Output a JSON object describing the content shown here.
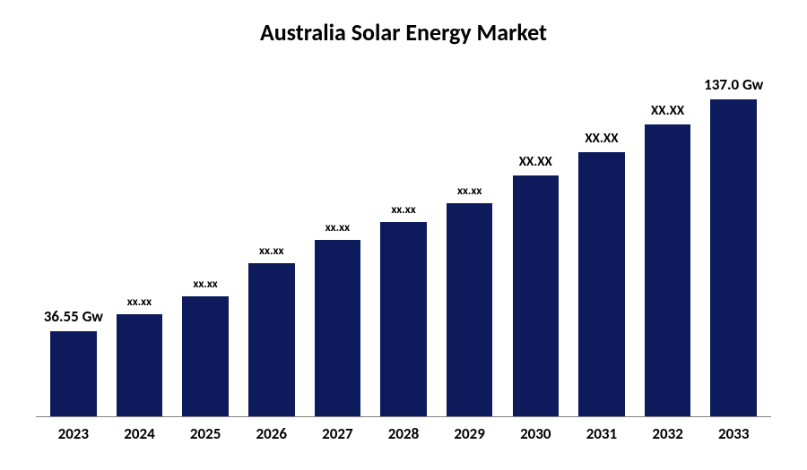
{
  "chart": {
    "type": "bar",
    "title": "Australia Solar Energy Market",
    "title_fontsize": 26,
    "title_color": "#000000",
    "background_color": "#ffffff",
    "axis_color": "#808080",
    "bar_color": "#0d1b5c",
    "bar_width_pct": 70,
    "ymax": 150,
    "x_label_fontsize": 17,
    "x_label_color": "#000000",
    "data_label_color": "#000000",
    "series": [
      {
        "category": "2023",
        "value": 36.55,
        "label": "36.55 Gw",
        "label_fontsize": 17
      },
      {
        "category": "2024",
        "value": 44,
        "label": "xx.xx",
        "label_fontsize": 13
      },
      {
        "category": "2025",
        "value": 52,
        "label": "xx.xx",
        "label_fontsize": 13
      },
      {
        "category": "2026",
        "value": 66,
        "label": "xx.xx",
        "label_fontsize": 13
      },
      {
        "category": "2027",
        "value": 76,
        "label": "xx.xx",
        "label_fontsize": 13
      },
      {
        "category": "2028",
        "value": 84,
        "label": "xx.xx",
        "label_fontsize": 13
      },
      {
        "category": "2029",
        "value": 92,
        "label": "xx.xx",
        "label_fontsize": 13
      },
      {
        "category": "2030",
        "value": 104,
        "label": "XX.XX",
        "label_fontsize": 15
      },
      {
        "category": "2031",
        "value": 114,
        "label": "XX.XX",
        "label_fontsize": 15
      },
      {
        "category": "2032",
        "value": 126,
        "label": "XX.XX",
        "label_fontsize": 15
      },
      {
        "category": "2033",
        "value": 137.0,
        "label": "137.0 Gw",
        "label_fontsize": 17
      }
    ]
  }
}
